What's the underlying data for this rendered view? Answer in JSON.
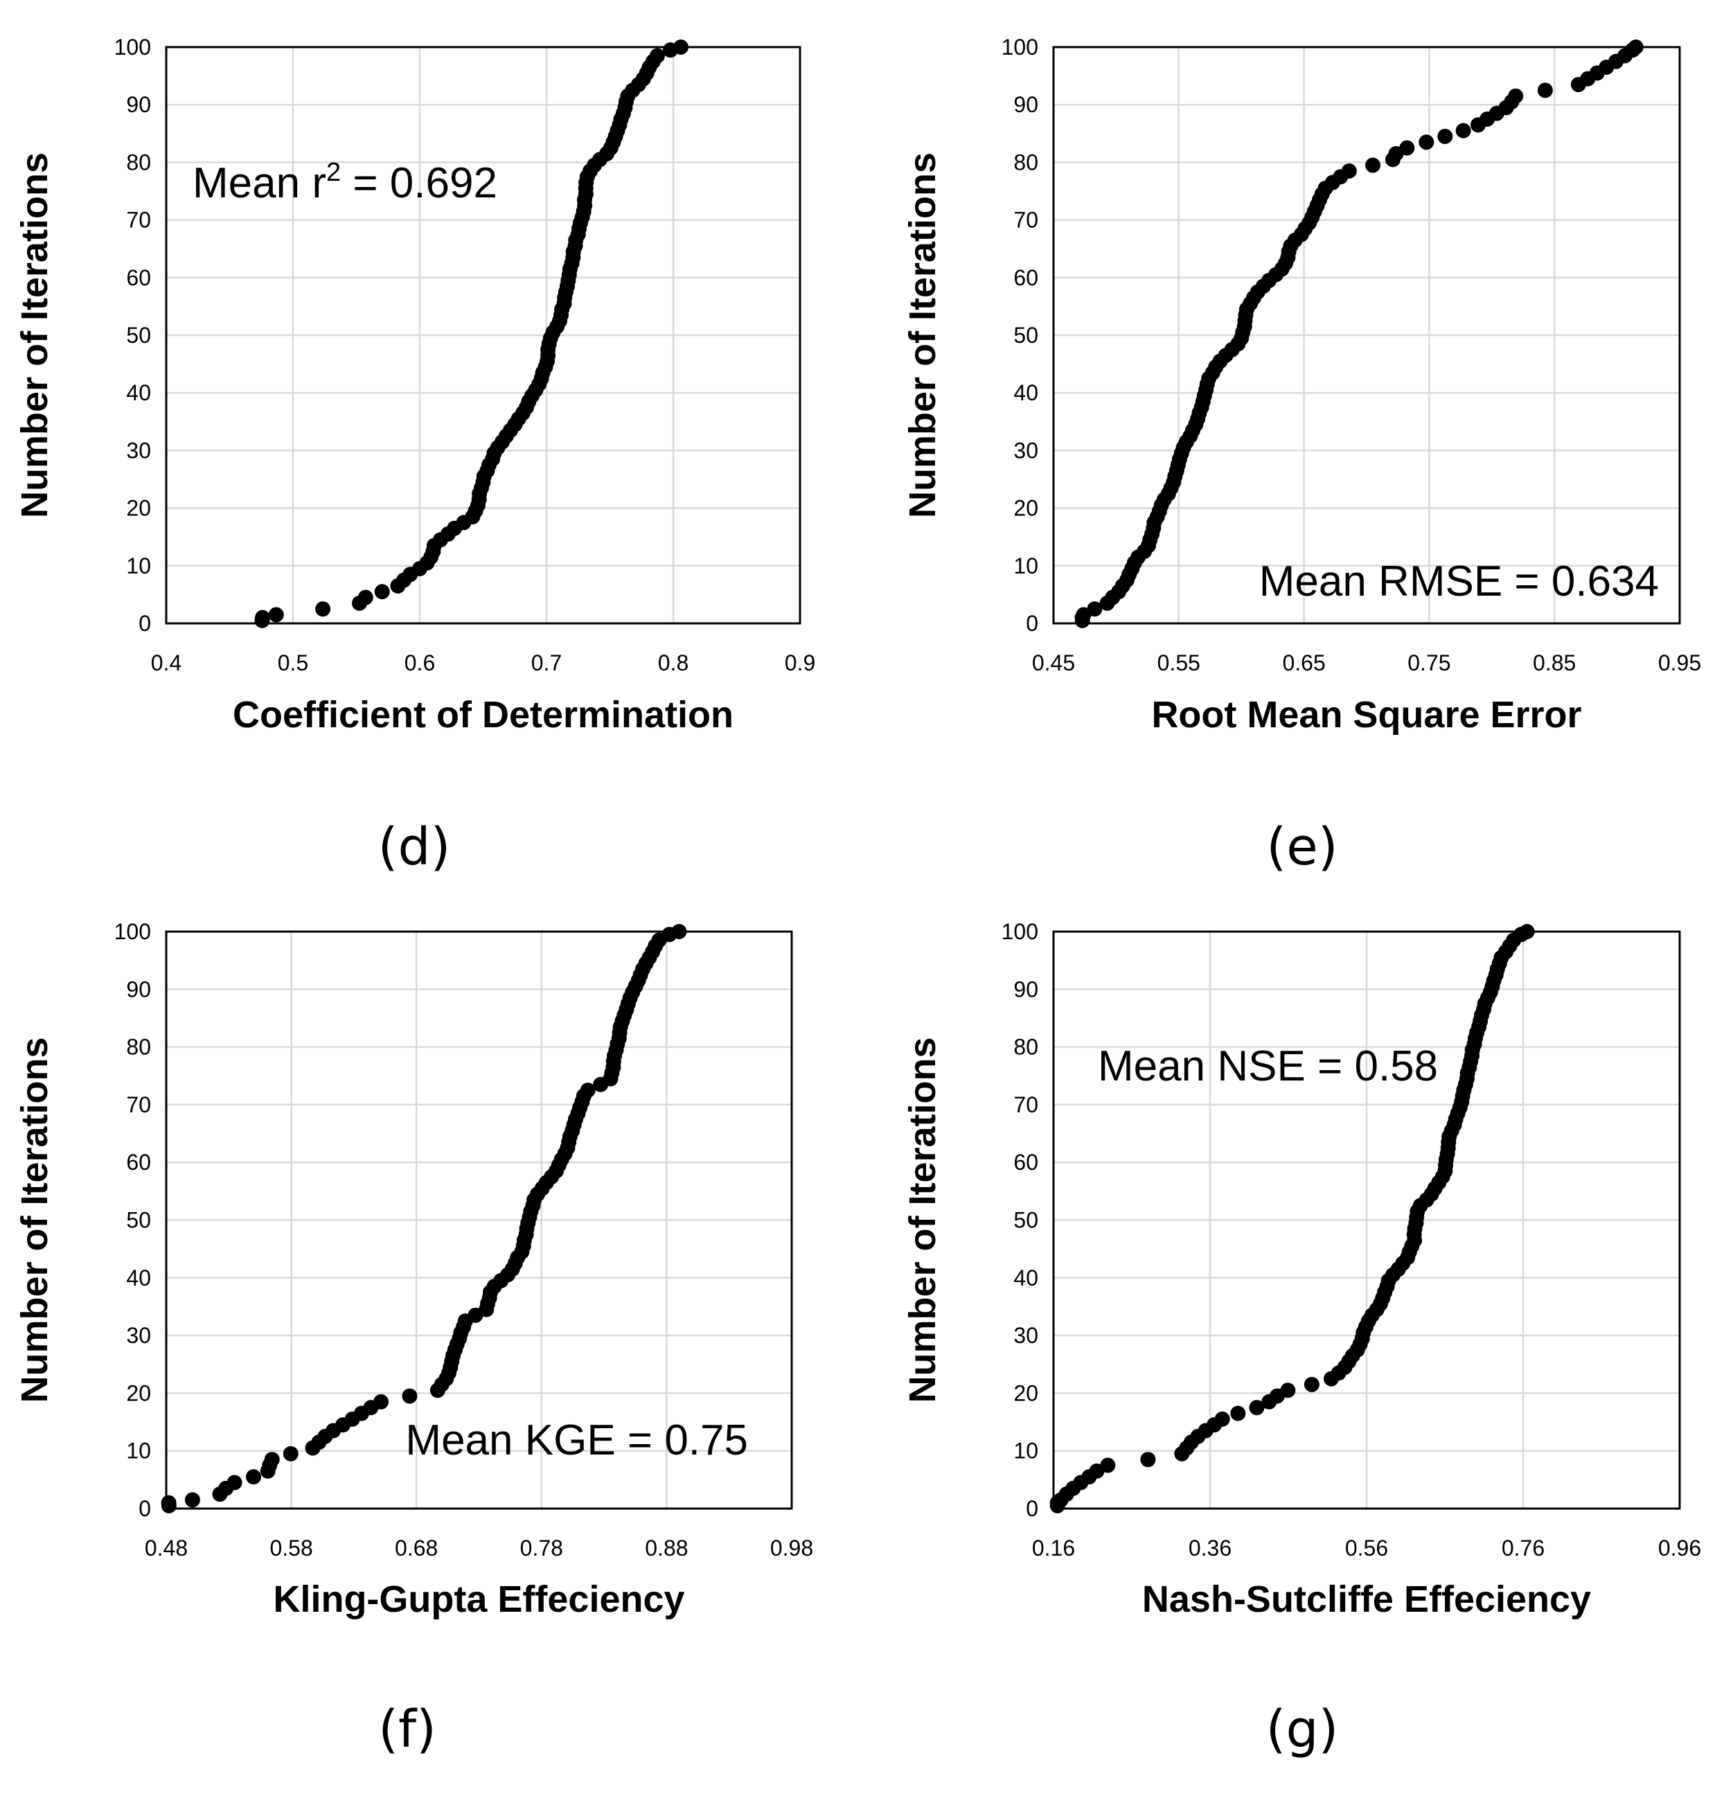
{
  "chart_data": [
    {
      "type": "scatter",
      "panel": "(d)",
      "xlabel": "Coefficient of Determination",
      "ylabel": "Number of Iterations",
      "annotation_pre": "Mean r",
      "annotation_sup": "2",
      "annotation_post": " = 0.692",
      "xlim": [
        0.4,
        0.9
      ],
      "ylim": [
        0,
        100
      ],
      "xticks": [
        "0.4",
        "0.5",
        "0.6",
        "0.7",
        "0.8",
        "0.9"
      ],
      "yticks": [
        "0",
        "10",
        "20",
        "30",
        "40",
        "50",
        "60",
        "70",
        "80",
        "90",
        "100"
      ],
      "grid": true,
      "anchors": [
        [
          0.476,
          1
        ],
        [
          0.497,
          2
        ],
        [
          0.55,
          3
        ],
        [
          0.56,
          5
        ],
        [
          0.58,
          6
        ],
        [
          0.59,
          8
        ],
        [
          0.595,
          9
        ],
        [
          0.605,
          10
        ],
        [
          0.61,
          12
        ],
        [
          0.612,
          14
        ],
        [
          0.62,
          15
        ],
        [
          0.625,
          16
        ],
        [
          0.63,
          17
        ],
        [
          0.64,
          18
        ],
        [
          0.645,
          20
        ],
        [
          0.65,
          25
        ],
        [
          0.66,
          30
        ],
        [
          0.67,
          33
        ],
        [
          0.68,
          36
        ],
        [
          0.69,
          40
        ],
        [
          0.695,
          42
        ],
        [
          0.7,
          45
        ],
        [
          0.703,
          50
        ],
        [
          0.71,
          52
        ],
        [
          0.715,
          57
        ],
        [
          0.72,
          63
        ],
        [
          0.725,
          68
        ],
        [
          0.73,
          72
        ],
        [
          0.732,
          78
        ],
        [
          0.74,
          80
        ],
        [
          0.75,
          82
        ],
        [
          0.76,
          88
        ],
        [
          0.765,
          92
        ],
        [
          0.775,
          94
        ],
        [
          0.785,
          98
        ],
        [
          0.79,
          99
        ],
        [
          0.806,
          100
        ]
      ]
    },
    {
      "type": "scatter",
      "panel": "(e)",
      "xlabel": "Root Mean Square Error",
      "ylabel": "Number of Iterations",
      "annotation_pre": "Mean RMSE = 0.634",
      "annotation_sup": "",
      "annotation_post": "",
      "xlim": [
        0.45,
        0.95
      ],
      "ylim": [
        0,
        100
      ],
      "xticks": [
        "0.45",
        "0.55",
        "0.65",
        "0.75",
        "0.85",
        "0.95"
      ],
      "yticks": [
        "0",
        "10",
        "20",
        "30",
        "40",
        "50",
        "60",
        "70",
        "80",
        "90",
        "100"
      ],
      "grid": true,
      "anchors": [
        [
          0.473,
          1
        ],
        [
          0.476,
          2
        ],
        [
          0.49,
          3
        ],
        [
          0.5,
          5
        ],
        [
          0.51,
          8
        ],
        [
          0.515,
          11
        ],
        [
          0.525,
          13
        ],
        [
          0.53,
          17
        ],
        [
          0.535,
          20
        ],
        [
          0.545,
          24
        ],
        [
          0.55,
          28
        ],
        [
          0.555,
          31
        ],
        [
          0.565,
          35
        ],
        [
          0.57,
          39
        ],
        [
          0.575,
          43
        ],
        [
          0.585,
          46
        ],
        [
          0.595,
          48
        ],
        [
          0.6,
          49
        ],
        [
          0.605,
          55
        ],
        [
          0.615,
          58
        ],
        [
          0.625,
          60
        ],
        [
          0.635,
          62
        ],
        [
          0.64,
          66
        ],
        [
          0.65,
          68
        ],
        [
          0.66,
          72
        ],
        [
          0.665,
          75
        ],
        [
          0.675,
          77
        ],
        [
          0.69,
          79
        ],
        [
          0.72,
          80
        ],
        [
          0.725,
          82
        ],
        [
          0.74,
          83
        ],
        [
          0.755,
          84
        ],
        [
          0.785,
          86
        ],
        [
          0.8,
          88
        ],
        [
          0.815,
          90
        ],
        [
          0.82,
          92
        ],
        [
          0.865,
          93
        ],
        [
          0.88,
          95
        ],
        [
          0.895,
          97
        ],
        [
          0.91,
          99
        ],
        [
          0.915,
          100
        ]
      ]
    },
    {
      "type": "scatter",
      "panel": "(f)",
      "xlabel": "Kling-Gupta Effeciency",
      "ylabel": "Number of Iterations",
      "annotation_pre": "Mean KGE = 0.75",
      "annotation_sup": "",
      "annotation_post": "",
      "xlim": [
        0.48,
        0.98
      ],
      "ylim": [
        0,
        100
      ],
      "xticks": [
        "0.48",
        "0.58",
        "0.68",
        "0.78",
        "0.88",
        "0.98"
      ],
      "yticks": [
        "0",
        "10",
        "20",
        "30",
        "40",
        "50",
        "60",
        "70",
        "80",
        "90",
        "100"
      ],
      "grid": true,
      "anchors": [
        [
          0.482,
          1
        ],
        [
          0.52,
          2
        ],
        [
          0.53,
          4
        ],
        [
          0.54,
          5
        ],
        [
          0.56,
          6
        ],
        [
          0.565,
          9
        ],
        [
          0.595,
          10
        ],
        [
          0.61,
          13
        ],
        [
          0.625,
          15
        ],
        [
          0.64,
          17
        ],
        [
          0.655,
          19
        ],
        [
          0.695,
          20
        ],
        [
          0.705,
          23
        ],
        [
          0.71,
          27
        ],
        [
          0.72,
          33
        ],
        [
          0.735,
          34
        ],
        [
          0.74,
          38
        ],
        [
          0.755,
          41
        ],
        [
          0.765,
          45
        ],
        [
          0.77,
          50
        ],
        [
          0.775,
          54
        ],
        [
          0.79,
          58
        ],
        [
          0.8,
          62
        ],
        [
          0.805,
          66
        ],
        [
          0.815,
          72
        ],
        [
          0.82,
          73
        ],
        [
          0.835,
          74
        ],
        [
          0.84,
          80
        ],
        [
          0.845,
          85
        ],
        [
          0.85,
          88
        ],
        [
          0.86,
          93
        ],
        [
          0.87,
          97
        ],
        [
          0.875,
          99
        ],
        [
          0.89,
          100
        ]
      ]
    },
    {
      "type": "scatter",
      "panel": "(g)",
      "xlabel": "Nash-Sutcliffe Effeciency",
      "ylabel": "Number of Iterations",
      "annotation_pre": "Mean NSE = 0.58",
      "annotation_sup": "",
      "annotation_post": "",
      "xlim": [
        0.16,
        0.96
      ],
      "ylim": [
        0,
        100
      ],
      "xticks": [
        "0.16",
        "0.36",
        "0.56",
        "0.76",
        "0.96"
      ],
      "yticks": [
        "0",
        "10",
        "20",
        "30",
        "40",
        "50",
        "60",
        "70",
        "80",
        "90",
        "100"
      ],
      "grid": true,
      "anchors": [
        [
          0.165,
          1
        ],
        [
          0.18,
          3
        ],
        [
          0.2,
          5
        ],
        [
          0.22,
          7
        ],
        [
          0.24,
          8
        ],
        [
          0.32,
          9
        ],
        [
          0.34,
          12
        ],
        [
          0.36,
          14
        ],
        [
          0.38,
          16
        ],
        [
          0.41,
          17
        ],
        [
          0.43,
          18
        ],
        [
          0.45,
          20
        ],
        [
          0.47,
          21
        ],
        [
          0.51,
          22
        ],
        [
          0.53,
          24
        ],
        [
          0.55,
          28
        ],
        [
          0.56,
          32
        ],
        [
          0.58,
          36
        ],
        [
          0.59,
          40
        ],
        [
          0.61,
          43
        ],
        [
          0.62,
          46
        ],
        [
          0.625,
          52
        ],
        [
          0.64,
          54
        ],
        [
          0.66,
          58
        ],
        [
          0.665,
          64
        ],
        [
          0.68,
          70
        ],
        [
          0.69,
          76
        ],
        [
          0.7,
          82
        ],
        [
          0.71,
          87
        ],
        [
          0.72,
          90
        ],
        [
          0.73,
          95
        ],
        [
          0.74,
          97
        ],
        [
          0.75,
          99
        ],
        [
          0.765,
          100
        ]
      ]
    }
  ]
}
